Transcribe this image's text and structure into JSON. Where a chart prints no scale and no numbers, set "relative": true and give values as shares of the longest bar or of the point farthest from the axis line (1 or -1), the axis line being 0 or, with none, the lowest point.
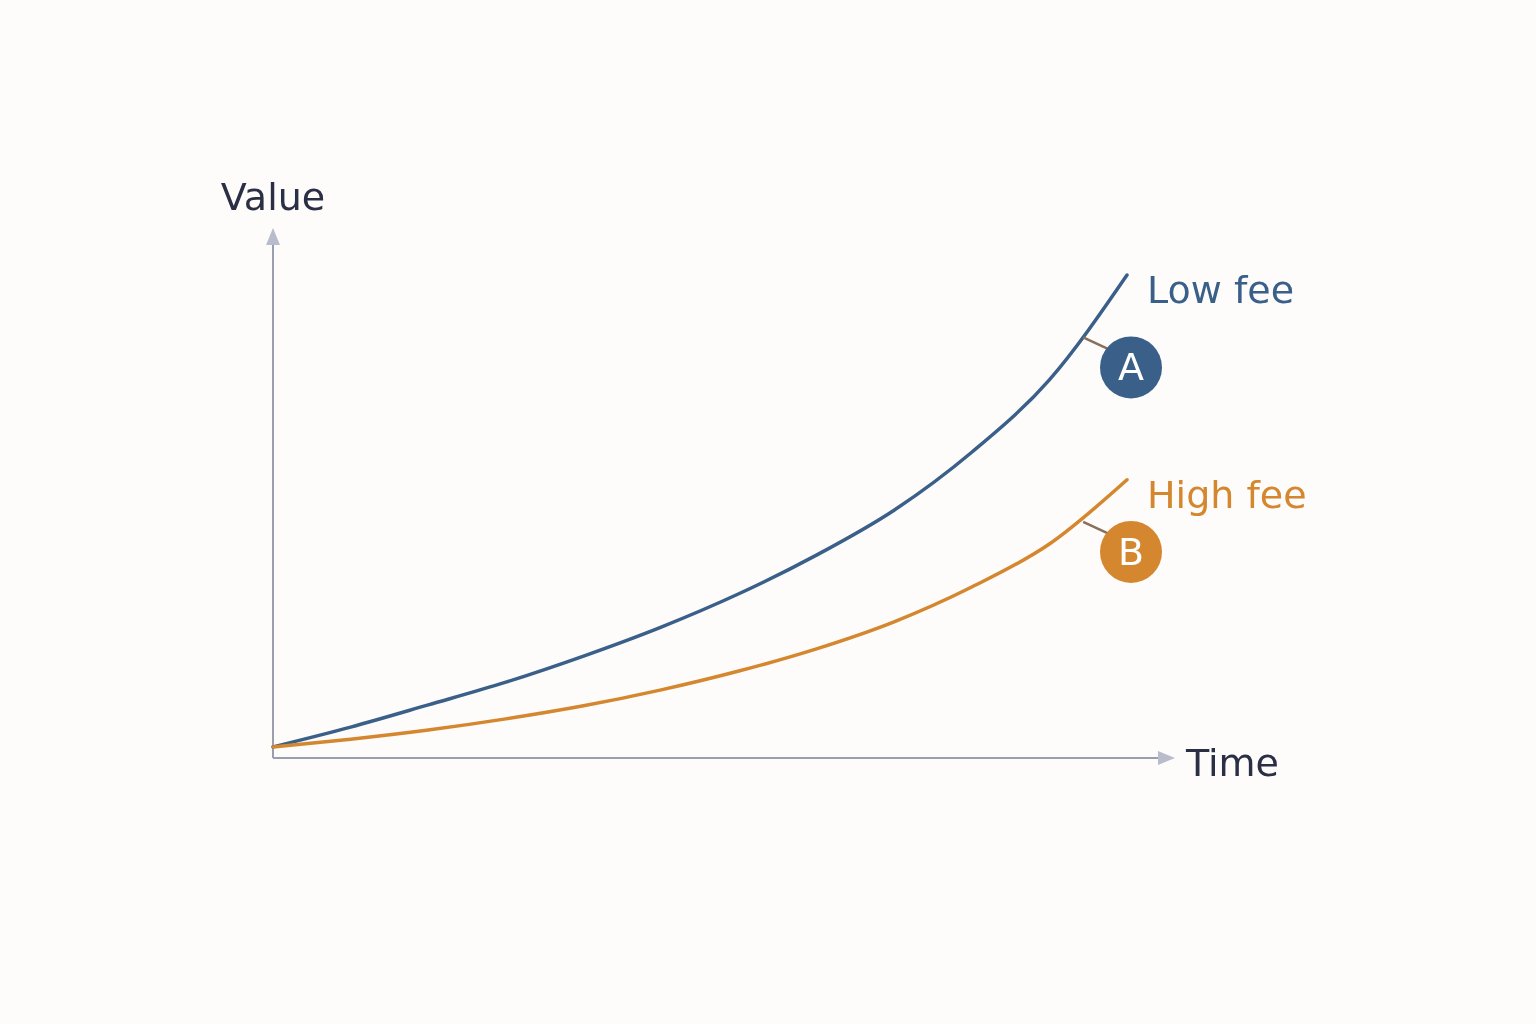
{
  "chart_data": {
    "type": "line",
    "relative": true,
    "xlabel": "Time",
    "ylabel": "Value",
    "marker": "none",
    "line_style": "solid",
    "categories": [
      null,
      null,
      null,
      null,
      null,
      null,
      null,
      null,
      null,
      null,
      null,
      null
    ],
    "series": [
      {
        "name": "Low fee",
        "color": "#3a6089",
        "values": [
          0.023,
          0.064,
          0.11,
          0.157,
          0.211,
          0.271,
          0.34,
          0.42,
          0.513,
          0.633,
          0.783,
          1
        ]
      },
      {
        "name": "High fee",
        "color": "#d4872e",
        "values": [
          0.023,
          0.039,
          0.058,
          0.081,
          0.108,
          0.141,
          0.18,
          0.226,
          0.282,
          0.354,
          0.443,
          0.576
        ]
      }
    ],
    "annotations": [
      "A",
      "B"
    ]
  }
}
